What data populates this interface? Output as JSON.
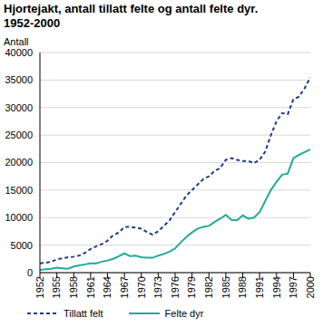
{
  "chart_data": {
    "type": "line",
    "title": "Hjortejakt, antall tillatt felte og antall felte dyr. 1952-2000",
    "y_label": "Antall",
    "x": [
      1952,
      1953,
      1954,
      1955,
      1956,
      1957,
      1958,
      1959,
      1960,
      1961,
      1962,
      1963,
      1964,
      1965,
      1966,
      1967,
      1968,
      1969,
      1970,
      1971,
      1972,
      1973,
      1974,
      1975,
      1976,
      1977,
      1978,
      1979,
      1980,
      1981,
      1982,
      1983,
      1984,
      1985,
      1986,
      1987,
      1988,
      1989,
      1990,
      1991,
      1992,
      1993,
      1994,
      1995,
      1996,
      1997,
      1998,
      1999,
      2000
    ],
    "series": [
      {
        "name": "Tillatt felt",
        "color": "#1f3c88",
        "line_style": "dashed",
        "values": [
          1700,
          1800,
          2000,
          2400,
          2600,
          2800,
          2900,
          3100,
          3600,
          4300,
          4800,
          5200,
          5800,
          6800,
          7300,
          8300,
          8300,
          8200,
          8000,
          7400,
          6900,
          7500,
          8500,
          9500,
          11000,
          12500,
          14000,
          15000,
          16000,
          17000,
          17500,
          18500,
          19000,
          20500,
          20800,
          20500,
          20300,
          20300,
          19900,
          20500,
          22000,
          25000,
          27500,
          29000,
          28800,
          31500,
          32000,
          33500,
          35500
        ]
      },
      {
        "name": "Felte dyr",
        "color": "#23a99b",
        "line_style": "solid",
        "values": [
          500,
          600,
          700,
          900,
          800,
          700,
          1100,
          1300,
          1500,
          1700,
          1700,
          2000,
          2200,
          2500,
          3000,
          3500,
          3000,
          3100,
          2800,
          2700,
          2700,
          3100,
          3400,
          3800,
          4400,
          5500,
          6500,
          7300,
          8000,
          8300,
          8500,
          9200,
          9800,
          10500,
          9600,
          9500,
          10400,
          9800,
          10000,
          11000,
          13000,
          15000,
          16500,
          17800,
          18000,
          20800,
          21400,
          21900,
          22400
        ]
      }
    ],
    "xlim": [
      1952,
      2000
    ],
    "xticks": [
      1952,
      1955,
      1958,
      1961,
      1964,
      1967,
      1970,
      1973,
      1976,
      1979,
      1982,
      1985,
      1988,
      1991,
      1994,
      1997,
      2000
    ],
    "ylim": [
      0,
      40000
    ],
    "yticks": [
      0,
      5000,
      10000,
      15000,
      20000,
      25000,
      30000,
      35000,
      40000
    ],
    "grid": true
  }
}
